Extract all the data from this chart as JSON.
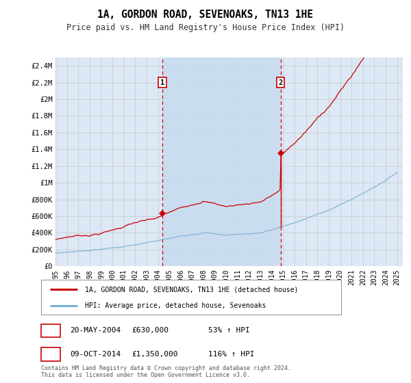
{
  "title": "1A, GORDON ROAD, SEVENOAKS, TN13 1HE",
  "subtitle": "Price paid vs. HM Land Registry's House Price Index (HPI)",
  "background_color": "#ffffff",
  "plot_bg_color": "#dce8f5",
  "shaded_region_color": "#c8dcf0",
  "grid_color": "#cccccc",
  "ylim": [
    0,
    2500000
  ],
  "yticks": [
    0,
    200000,
    400000,
    600000,
    800000,
    1000000,
    1200000,
    1400000,
    1600000,
    1800000,
    2000000,
    2200000,
    2400000
  ],
  "ytick_labels": [
    "£0",
    "£200K",
    "£400K",
    "£600K",
    "£800K",
    "£1M",
    "£1.2M",
    "£1.4M",
    "£1.6M",
    "£1.8M",
    "£2M",
    "£2.2M",
    "£2.4M"
  ],
  "sale_color": "#cc0000",
  "hpi_color": "#7ab0d4",
  "sale1_x": 2004.38,
  "sale1_y": 630000,
  "sale2_x": 2014.77,
  "sale2_y": 1350000,
  "legend_sale_label": "1A, GORDON ROAD, SEVENOAKS, TN13 1HE (detached house)",
  "legend_hpi_label": "HPI: Average price, detached house, Sevenoaks",
  "annotation1_date": "20-MAY-2004",
  "annotation1_price": "£630,000",
  "annotation1_hpi": "53% ↑ HPI",
  "annotation2_date": "09-OCT-2014",
  "annotation2_price": "£1,350,000",
  "annotation2_hpi": "116% ↑ HPI",
  "footer": "Contains HM Land Registry data © Crown copyright and database right 2024.\nThis data is licensed under the Open Government Licence v3.0.",
  "xmin": 1995.0,
  "xmax": 2025.5,
  "xticks": [
    1995,
    1996,
    1997,
    1998,
    1999,
    2000,
    2001,
    2002,
    2003,
    2004,
    2005,
    2006,
    2007,
    2008,
    2009,
    2010,
    2011,
    2012,
    2013,
    2014,
    2015,
    2016,
    2017,
    2018,
    2019,
    2020,
    2021,
    2022,
    2023,
    2024,
    2025
  ]
}
